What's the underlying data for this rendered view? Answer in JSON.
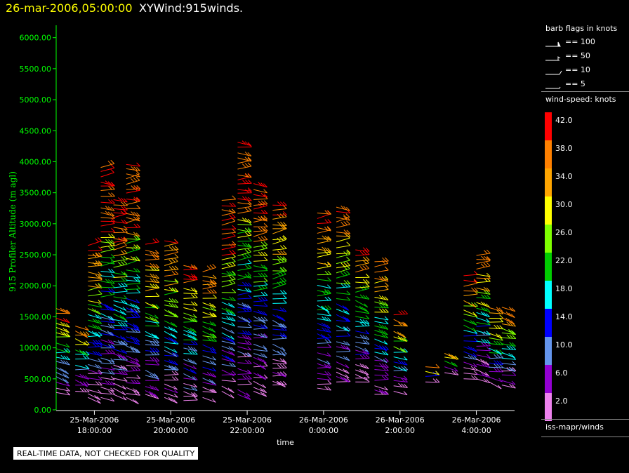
{
  "header": {
    "datetime": "26-mar-2006,05:00:00",
    "name": "XYWind:915winds."
  },
  "legend": {
    "barb_title": "barb flags in knots",
    "barbs": [
      {
        "label": "== 100",
        "kind": "pennant"
      },
      {
        "label": "== 50",
        "kind": "flag"
      },
      {
        "label": "== 10",
        "kind": "full"
      },
      {
        "label": "== 5",
        "kind": "half"
      }
    ],
    "colorbar_title": "wind-speed: knots",
    "colorbar": [
      {
        "label": "42.0",
        "color": "#ff0000"
      },
      {
        "label": "38.0",
        "color": "#ff8000"
      },
      {
        "label": "34.0",
        "color": "#ffa500"
      },
      {
        "label": "30.0",
        "color": "#ffff00"
      },
      {
        "label": "26.0",
        "color": "#7fff00"
      },
      {
        "label": "22.0",
        "color": "#00cc00"
      },
      {
        "label": "18.0",
        "color": "#00ffff"
      },
      {
        "label": "14.0",
        "color": "#0000ff"
      },
      {
        "label": "10.0",
        "color": "#6495ed"
      },
      {
        "label": "6.0",
        "color": "#9400d3"
      },
      {
        "label": "2.0",
        "color": "#ee82ee"
      }
    ],
    "source": "iss-mapr/winds"
  },
  "warning": "REAL-TIME DATA, NOT CHECKED FOR QUALITY",
  "chart_data": {
    "type": "scatter",
    "subtype": "wind-barb profile",
    "title": "XYWind:915winds.",
    "xlabel": "time",
    "ylabel": "915 Profiler Altitude (m agl)",
    "ylim": [
      0,
      6200
    ],
    "y_ticks": [
      "0.00",
      "500.00",
      "1000.00",
      "1500.00",
      "2000.00",
      "2500.00",
      "3000.00",
      "3500.00",
      "4000.00",
      "4500.00",
      "5000.00",
      "5500.00",
      "6000.00"
    ],
    "x_ticks": [
      {
        "date": "25-Mar-2006",
        "time": "18:00:00"
      },
      {
        "date": "25-Mar-2006",
        "time": "20:00:00"
      },
      {
        "date": "25-Mar-2006",
        "time": "22:00:00"
      },
      {
        "date": "26-Mar-2006",
        "time": "0:00:00"
      },
      {
        "date": "26-Mar-2006",
        "time": "2:00:00"
      },
      {
        "date": "26-Mar-2006",
        "time": "4:00:00"
      }
    ],
    "xlim": [
      "25-Mar-2006 17:00",
      "26-Mar-2006 05:00"
    ],
    "profiles": [
      {
        "time": "25-Mar-2006 17:00",
        "bottom": 280,
        "top": 1650
      },
      {
        "time": "25-Mar-2006 17:30",
        "bottom": 300,
        "top": 1400
      },
      {
        "time": "25-Mar-2006 17:50",
        "bottom": 200,
        "top": 2700
      },
      {
        "time": "25-Mar-2006 18:10",
        "bottom": 200,
        "top": 3950
      },
      {
        "time": "25-Mar-2006 18:30",
        "bottom": 250,
        "top": 3450
      },
      {
        "time": "25-Mar-2006 18:50",
        "bottom": 200,
        "top": 4020
      },
      {
        "time": "25-Mar-2006 19:20",
        "bottom": 250,
        "top": 2700
      },
      {
        "time": "25-Mar-2006 19:50",
        "bottom": 200,
        "top": 2750
      },
      {
        "time": "25-Mar-2006 20:20",
        "bottom": 150,
        "top": 2400
      },
      {
        "time": "25-Mar-2006 20:50",
        "bottom": 200,
        "top": 2300
      },
      {
        "time": "25-Mar-2006 21:20",
        "bottom": 300,
        "top": 3400
      },
      {
        "time": "25-Mar-2006 21:45",
        "bottom": 250,
        "top": 4350
      },
      {
        "time": "25-Mar-2006 22:10",
        "bottom": 300,
        "top": 3700
      },
      {
        "time": "25-Mar-2006 22:40",
        "bottom": 400,
        "top": 3350
      },
      {
        "time": "25-Mar-2006 23:50",
        "bottom": 350,
        "top": 3250
      },
      {
        "time": "26-Mar-2006 00:20",
        "bottom": 450,
        "top": 3300
      },
      {
        "time": "26-Mar-2006 00:50",
        "bottom": 450,
        "top": 2600
      },
      {
        "time": "26-Mar-2006 01:20",
        "bottom": 250,
        "top": 2450
      },
      {
        "time": "26-Mar-2006 01:50",
        "bottom": 300,
        "top": 1600
      },
      {
        "time": "26-Mar-2006 02:40",
        "bottom": 450,
        "top": 700
      },
      {
        "time": "26-Mar-2006 03:10",
        "bottom": 600,
        "top": 950
      },
      {
        "time": "26-Mar-2006 03:40",
        "bottom": 500,
        "top": 2200
      },
      {
        "time": "26-Mar-2006 04:00",
        "bottom": 500,
        "top": 2550
      },
      {
        "time": "26-Mar-2006 04:20",
        "bottom": 450,
        "top": 1650
      },
      {
        "time": "26-Mar-2006 04:40",
        "bottom": 400,
        "top": 1700
      }
    ]
  }
}
